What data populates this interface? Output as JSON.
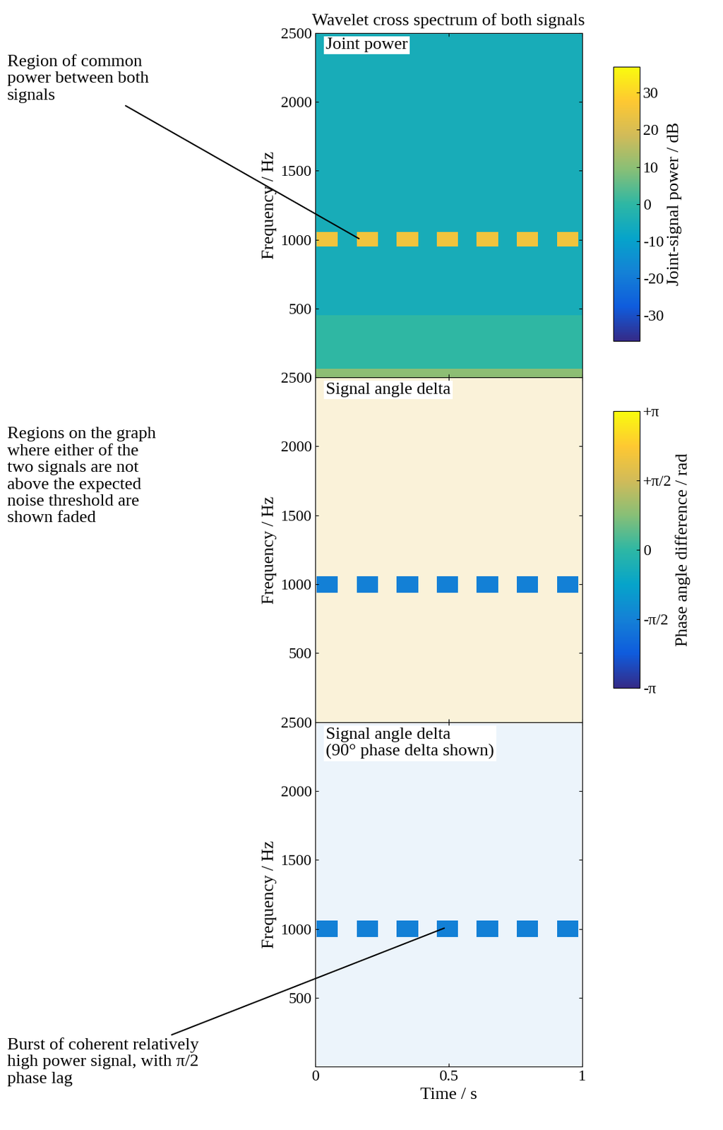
{
  "chart_data": [
    {
      "type": "heatmap",
      "title": "Wavelet cross spectrum of both signals",
      "label": "Joint power",
      "ylabel": "Frequency / Hz",
      "xlim": [
        0,
        1
      ],
      "xticks": [
        0,
        0.5,
        1
      ],
      "ylim": [
        0,
        2500
      ],
      "yticks": [
        500,
        1000,
        1500,
        2000,
        2500
      ],
      "tick_labels": "y",
      "background": -5,
      "bands": [
        {
          "freq": [
            0,
            450
          ],
          "value": 0
        },
        {
          "freq": [
            0,
            60
          ],
          "value": 10
        }
      ],
      "bursts": {
        "starts": [
          0.005,
          0.155,
          0.305,
          0.455,
          0.605,
          0.755,
          0.905
        ],
        "ends": [
          0.085,
          0.235,
          0.385,
          0.535,
          0.685,
          0.835,
          0.985
        ],
        "freq": [
          945,
          1055
        ],
        "value": 25
      },
      "colorbar": {
        "label": "Joint-signal power / dB",
        "range": [
          -37,
          37
        ],
        "ticks": [
          -30,
          -20,
          -10,
          0,
          10,
          20,
          30
        ]
      },
      "annotation": "Region of common\npower between both\nsignals"
    },
    {
      "type": "heatmap",
      "label": "Signal angle delta",
      "ylabel": "Frequency / Hz",
      "xlim": [
        0,
        1
      ],
      "xticks": [
        0,
        0.5,
        1
      ],
      "ylim": [
        0,
        2500
      ],
      "yticks": [
        500,
        1000,
        1500,
        2000,
        2500
      ],
      "tick_labels": "y",
      "background": 2.0,
      "bands": [],
      "bursts": {
        "starts": [
          0.005,
          0.155,
          0.305,
          0.455,
          0.605,
          0.755,
          0.905
        ],
        "ends": [
          0.085,
          0.235,
          0.385,
          0.535,
          0.685,
          0.835,
          0.985
        ],
        "freq": [
          940,
          1060
        ],
        "value": -1.5708
      },
      "colorbar": {
        "label": "Phase angle difference / rad",
        "range": [
          -3.14159,
          3.14159
        ],
        "ticks": [
          {
            "value": -3.14159,
            "label": "-π"
          },
          {
            "value": -1.5708,
            "label": "-π/2"
          },
          0,
          {
            "value": 1.5708,
            "label": "+π/2"
          },
          {
            "value": 3.14159,
            "label": "+π"
          }
        ]
      },
      "annotation": "Regions on the graph\nwhere either of the\ntwo signals are not\nabove the expected\nnoise threshold are\nshown faded"
    },
    {
      "type": "heatmap",
      "label": "Signal angle delta\n(90° phase delta shown)",
      "xlabel": "Time / s",
      "ylabel": "Frequency / Hz",
      "xlim": [
        0,
        1
      ],
      "xticks": [
        0,
        0.5,
        1
      ],
      "ylim": [
        0,
        2500
      ],
      "yticks": [
        500,
        1000,
        1500,
        2000,
        2500
      ],
      "background": -1.5708,
      "bands": [],
      "bursts": {
        "starts": [
          0.005,
          0.155,
          0.305,
          0.455,
          0.605,
          0.755,
          0.905
        ],
        "ends": [
          0.085,
          0.235,
          0.385,
          0.535,
          0.685,
          0.835,
          0.985
        ],
        "freq": [
          940,
          1060
        ],
        "value": -1.5708
      },
      "annotation": "Burst of coherent relatively\nhigh power signal, with π/2\nphase lag"
    }
  ]
}
